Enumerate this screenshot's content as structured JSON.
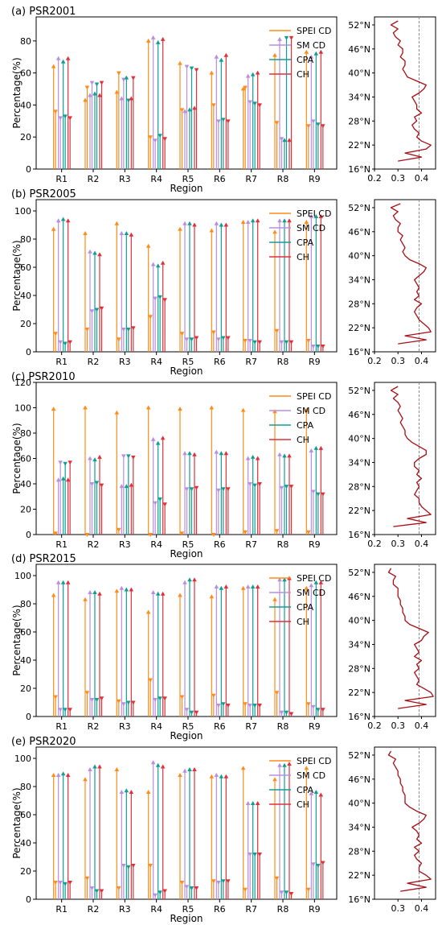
{
  "figure": {
    "panels": [
      {
        "title": "(a) PSR2001"
      },
      {
        "title": "(b) PSR2005"
      },
      {
        "title": "(c) PSR2010"
      },
      {
        "title": "(d) PSR2015"
      },
      {
        "title": "(e) PSR2020"
      }
    ]
  },
  "colors": {
    "SPEI CD": "#ff8c1a",
    "SM CD": "#b88ee0",
    "CPA": "#139e93",
    "CH": "#e0313b",
    "profile": "#a50f15",
    "reference": "#808080"
  },
  "chart_data": [
    {
      "type": "bar",
      "title": "(a) PSR2001",
      "xlabel": "Region",
      "ylabel": "Percentage(%)",
      "categories": [
        "R1",
        "R2",
        "R3",
        "R4",
        "R5",
        "R6",
        "R7",
        "R8",
        "R9"
      ],
      "ylim": [
        0,
        95
      ],
      "yticks": [
        0,
        20,
        40,
        60,
        80
      ],
      "legend": "top-right",
      "series": [
        {
          "name": "SPEI CD",
          "up": [
            64,
            43,
            48,
            80,
            66,
            60,
            50,
            71,
            73
          ],
          "down": [
            36,
            51,
            60,
            20,
            37,
            40,
            51,
            29,
            27
          ]
        },
        {
          "name": "SM CD",
          "up": [
            69,
            46,
            44,
            82,
            36,
            70,
            58,
            81,
            70
          ],
          "down": [
            32,
            54,
            56,
            18,
            64,
            30,
            42,
            19,
            30
          ]
        },
        {
          "name": "CPA",
          "up": [
            67,
            47,
            57,
            79,
            37,
            68,
            59,
            18,
            72
          ],
          "down": [
            33,
            53,
            43,
            21,
            63,
            31,
            41,
            82,
            28
          ]
        },
        {
          "name": "CH",
          "up": [
            69,
            46,
            44,
            81,
            38,
            71,
            60,
            18,
            73
          ],
          "down": [
            32,
            54,
            57,
            19,
            62,
            30,
            40,
            82,
            27
          ]
        }
      ],
      "profile": {
        "xticks": [
          "0.2",
          "0.3",
          "0.4"
        ],
        "yticks": [
          "16°N",
          "22°N",
          "28°N",
          "34°N",
          "40°N",
          "46°N",
          "52°N"
        ],
        "xlim": [
          0.2,
          0.46
        ],
        "ylim": [
          16,
          54
        ],
        "reference_x": 0.39,
        "lat": [
          18,
          19,
          20,
          21,
          22,
          23,
          24,
          25,
          26,
          27,
          28,
          29,
          30,
          31,
          32,
          33,
          34,
          35,
          36,
          37,
          38,
          39,
          40,
          41,
          42,
          43,
          44,
          45,
          46,
          47,
          48,
          49,
          50,
          51,
          52,
          53
        ],
        "value": [
          0.3,
          0.4,
          0.33,
          0.42,
          0.44,
          0.4,
          0.38,
          0.39,
          0.37,
          0.36,
          0.38,
          0.37,
          0.4,
          0.38,
          0.38,
          0.37,
          0.36,
          0.39,
          0.41,
          0.42,
          0.38,
          0.34,
          0.33,
          0.32,
          0.33,
          0.33,
          0.31,
          0.32,
          0.32,
          0.3,
          0.31,
          0.29,
          0.28,
          0.3,
          0.27,
          0.3
        ]
      }
    },
    {
      "type": "bar",
      "title": "(b) PSR2005",
      "xlabel": "Region",
      "ylabel": "Percentage(%)",
      "categories": [
        "R1",
        "R2",
        "R3",
        "R4",
        "R5",
        "R6",
        "R7",
        "R8",
        "R9"
      ],
      "ylim": [
        0,
        108
      ],
      "yticks": [
        0,
        20,
        40,
        60,
        80,
        100
      ],
      "legend": "top-right",
      "series": [
        {
          "name": "SPEI CD",
          "up": [
            87,
            84,
            91,
            75,
            87,
            86,
            92,
            85,
            92
          ],
          "down": [
            13,
            16,
            9,
            25,
            13,
            14,
            8,
            15,
            8
          ]
        },
        {
          "name": "SM CD",
          "up": [
            93,
            71,
            84,
            62,
            91,
            91,
            92,
            93,
            96
          ],
          "down": [
            7,
            29,
            16,
            38,
            9,
            9,
            8,
            7,
            4
          ]
        },
        {
          "name": "CPA",
          "up": [
            94,
            70,
            84,
            61,
            91,
            90,
            93,
            93,
            96
          ],
          "down": [
            6,
            30,
            16,
            39,
            9,
            10,
            7,
            7,
            4
          ]
        },
        {
          "name": "CH",
          "up": [
            93,
            69,
            83,
            63,
            90,
            90,
            93,
            93,
            96
          ],
          "down": [
            7,
            31,
            17,
            37,
            10,
            10,
            7,
            7,
            4
          ]
        }
      ],
      "profile": {
        "xticks": [
          "0.2",
          "0.3",
          "0.4"
        ],
        "yticks": [
          "16°N",
          "22°N",
          "28°N",
          "34°N",
          "40°N",
          "46°N",
          "52°N"
        ],
        "xlim": [
          0.2,
          0.46
        ],
        "ylim": [
          16,
          54
        ],
        "reference_x": 0.39,
        "lat": [
          18,
          19,
          20,
          21,
          22,
          23,
          24,
          25,
          26,
          27,
          28,
          29,
          30,
          31,
          32,
          33,
          34,
          35,
          36,
          37,
          38,
          39,
          40,
          41,
          42,
          43,
          44,
          45,
          46,
          47,
          48,
          49,
          50,
          51,
          52,
          53
        ],
        "value": [
          0.3,
          0.42,
          0.33,
          0.44,
          0.43,
          0.41,
          0.39,
          0.38,
          0.37,
          0.38,
          0.4,
          0.37,
          0.39,
          0.38,
          0.39,
          0.38,
          0.37,
          0.39,
          0.41,
          0.42,
          0.39,
          0.35,
          0.33,
          0.32,
          0.33,
          0.32,
          0.31,
          0.32,
          0.3,
          0.3,
          0.31,
          0.29,
          0.28,
          0.3,
          0.27,
          0.31
        ]
      }
    },
    {
      "type": "bar",
      "title": "(c) PSR2010",
      "xlabel": "Region",
      "ylabel": "Percentage(%)",
      "categories": [
        "R1",
        "R2",
        "R3",
        "R4",
        "R5",
        "R6",
        "R7",
        "R8",
        "R9"
      ],
      "ylim": [
        0,
        120
      ],
      "yticks": [
        0,
        20,
        40,
        60,
        80,
        100,
        120
      ],
      "legend": "top-right",
      "series": [
        {
          "name": "SPEI CD",
          "up": [
            99,
            100,
            96,
            100,
            99,
            100,
            98,
            97,
            98
          ],
          "down": [
            1,
            0,
            4,
            0,
            1,
            0,
            2,
            3,
            2
          ]
        },
        {
          "name": "SM CD",
          "up": [
            43,
            60,
            38,
            75,
            64,
            65,
            60,
            63,
            66
          ],
          "down": [
            57,
            40,
            62,
            25,
            36,
            35,
            40,
            37,
            34
          ]
        },
        {
          "name": "CPA",
          "up": [
            44,
            59,
            38,
            72,
            64,
            64,
            61,
            62,
            68
          ],
          "down": [
            56,
            41,
            62,
            28,
            36,
            36,
            39,
            38,
            32
          ]
        },
        {
          "name": "CH",
          "up": [
            43,
            61,
            39,
            76,
            63,
            64,
            60,
            62,
            68
          ],
          "down": [
            57,
            39,
            61,
            24,
            37,
            36,
            40,
            38,
            32
          ]
        }
      ],
      "profile": {
        "xticks": [
          "0.2",
          "0.3",
          "0.4"
        ],
        "yticks": [
          "16°N",
          "22°N",
          "28°N",
          "34°N",
          "40°N",
          "46°N",
          "52°N"
        ],
        "xlim": [
          0.2,
          0.46
        ],
        "ylim": [
          16,
          54
        ],
        "reference_x": 0.39,
        "lat": [
          18,
          19,
          20,
          21,
          22,
          23,
          24,
          25,
          26,
          27,
          28,
          29,
          30,
          31,
          32,
          33,
          34,
          35,
          36,
          37,
          38,
          39,
          40,
          41,
          42,
          43,
          44,
          45,
          46,
          47,
          48,
          49,
          50,
          51,
          52,
          53
        ],
        "value": [
          0.28,
          0.42,
          0.34,
          0.44,
          0.42,
          0.4,
          0.39,
          0.39,
          0.37,
          0.38,
          0.39,
          0.38,
          0.4,
          0.38,
          0.39,
          0.37,
          0.37,
          0.39,
          0.42,
          0.42,
          0.39,
          0.36,
          0.34,
          0.33,
          0.33,
          0.32,
          0.31,
          0.32,
          0.31,
          0.3,
          0.31,
          0.3,
          0.28,
          0.3,
          0.27,
          0.3
        ]
      }
    },
    {
      "type": "bar",
      "title": "(d) PSR2015",
      "xlabel": "Region",
      "ylabel": "Percentage(%)",
      "categories": [
        "R1",
        "R2",
        "R3",
        "R4",
        "R5",
        "R6",
        "R7",
        "R8",
        "R9"
      ],
      "ylim": [
        0,
        108
      ],
      "yticks": [
        0,
        20,
        40,
        60,
        80,
        100
      ],
      "legend": "top-right",
      "series": [
        {
          "name": "SPEI CD",
          "up": [
            86,
            83,
            89,
            74,
            86,
            85,
            91,
            83,
            91
          ],
          "down": [
            14,
            17,
            11,
            26,
            14,
            15,
            9,
            17,
            9
          ]
        },
        {
          "name": "SM CD",
          "up": [
            95,
            88,
            91,
            88,
            95,
            92,
            92,
            97,
            93
          ],
          "down": [
            5,
            12,
            9,
            12,
            5,
            8,
            8,
            3,
            7
          ]
        },
        {
          "name": "CPA",
          "up": [
            95,
            88,
            90,
            87,
            97,
            91,
            92,
            97,
            95
          ],
          "down": [
            5,
            12,
            10,
            13,
            3,
            9,
            8,
            3,
            5
          ]
        },
        {
          "name": "CH",
          "up": [
            95,
            87,
            90,
            87,
            97,
            92,
            92,
            98,
            95
          ],
          "down": [
            5,
            13,
            10,
            13,
            3,
            8,
            8,
            2,
            5
          ]
        }
      ],
      "profile": {
        "xticks": [
          "0.2",
          "0.3",
          "0.4"
        ],
        "yticks": [
          "16°N",
          "22°N",
          "28°N",
          "34°N",
          "40°N",
          "46°N",
          "52°N"
        ],
        "xlim": [
          0.2,
          0.46
        ],
        "ylim": [
          16,
          54
        ],
        "reference_x": 0.39,
        "lat": [
          18,
          19,
          20,
          21,
          22,
          23,
          24,
          25,
          26,
          27,
          28,
          29,
          30,
          31,
          32,
          33,
          34,
          35,
          36,
          37,
          38,
          39,
          40,
          41,
          42,
          43,
          44,
          45,
          46,
          47,
          48,
          49,
          50,
          51,
          52,
          53
        ],
        "value": [
          0.3,
          0.42,
          0.33,
          0.45,
          0.44,
          0.41,
          0.38,
          0.39,
          0.38,
          0.37,
          0.39,
          0.38,
          0.4,
          0.37,
          0.39,
          0.38,
          0.37,
          0.4,
          0.41,
          0.43,
          0.39,
          0.35,
          0.33,
          0.33,
          0.32,
          0.32,
          0.31,
          0.31,
          0.3,
          0.3,
          0.3,
          0.28,
          0.28,
          0.29,
          0.26,
          0.27
        ]
      }
    },
    {
      "type": "bar",
      "title": "(e) PSR2020",
      "xlabel": "Region",
      "ylabel": "Percentage(%)",
      "categories": [
        "R1",
        "R2",
        "R3",
        "R4",
        "R5",
        "R6",
        "R7",
        "R8",
        "R9"
      ],
      "ylim": [
        0,
        108
      ],
      "yticks": [
        0,
        20,
        40,
        60,
        80,
        100
      ],
      "legend": "top-right",
      "series": [
        {
          "name": "SPEI CD",
          "up": [
            88,
            85,
            92,
            76,
            88,
            87,
            93,
            85,
            93
          ],
          "down": [
            12,
            15,
            8,
            24,
            12,
            13,
            7,
            15,
            7
          ]
        },
        {
          "name": "SM CD",
          "up": [
            88,
            92,
            76,
            97,
            91,
            88,
            68,
            95,
            75
          ],
          "down": [
            12,
            8,
            24,
            3,
            9,
            12,
            32,
            5,
            25
          ]
        },
        {
          "name": "CPA",
          "up": [
            89,
            94,
            77,
            95,
            92,
            87,
            68,
            95,
            76
          ],
          "down": [
            11,
            6,
            23,
            5,
            8,
            13,
            32,
            5,
            24
          ]
        },
        {
          "name": "CH",
          "up": [
            88,
            94,
            76,
            94,
            92,
            87,
            68,
            96,
            74
          ],
          "down": [
            12,
            6,
            24,
            6,
            8,
            13,
            32,
            4,
            26
          ]
        }
      ],
      "profile": {
        "xticks": [
          "0.3",
          "0.4"
        ],
        "yticks": [
          "16°N",
          "22°N",
          "28°N",
          "34°N",
          "40°N",
          "46°N",
          "52°N"
        ],
        "xlim": [
          0.2,
          0.46
        ],
        "ylim": [
          16,
          54
        ],
        "reference_x": 0.39,
        "lat": [
          18,
          19,
          20,
          21,
          22,
          23,
          24,
          25,
          26,
          27,
          28,
          29,
          30,
          31,
          32,
          33,
          34,
          35,
          36,
          37,
          38,
          39,
          40,
          41,
          42,
          43,
          44,
          45,
          46,
          47,
          48,
          49,
          50,
          51,
          52,
          53
        ],
        "value": [
          0.31,
          0.42,
          0.34,
          0.44,
          0.42,
          0.39,
          0.39,
          0.4,
          0.38,
          0.37,
          0.39,
          0.37,
          0.4,
          0.38,
          0.39,
          0.38,
          0.36,
          0.39,
          0.41,
          0.42,
          0.38,
          0.35,
          0.33,
          0.33,
          0.33,
          0.32,
          0.32,
          0.31,
          0.31,
          0.3,
          0.3,
          0.29,
          0.28,
          0.29,
          0.26,
          0.27
        ]
      }
    }
  ]
}
